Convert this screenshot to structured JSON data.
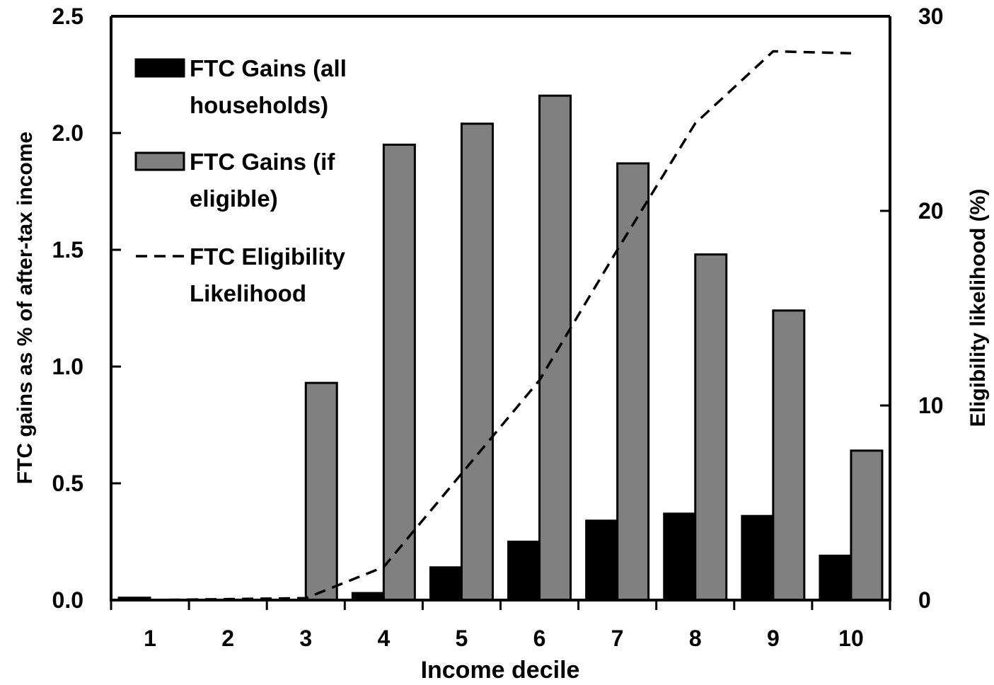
{
  "chart_data": {
    "type": "bar",
    "categories": [
      "1",
      "2",
      "3",
      "4",
      "5",
      "6",
      "7",
      "8",
      "9",
      "10"
    ],
    "series": [
      {
        "name": "FTC Gains (all households)",
        "kind": "bar",
        "axis": "left",
        "color": "#000000",
        "values": [
          0.01,
          0.0,
          0.0,
          0.03,
          0.14,
          0.25,
          0.34,
          0.37,
          0.36,
          0.19
        ]
      },
      {
        "name": "FTC Gains (if eligible)",
        "kind": "bar",
        "axis": "left",
        "color": "#808080",
        "values": [
          0.0,
          0.0,
          0.93,
          1.95,
          2.04,
          2.16,
          1.87,
          1.48,
          1.24,
          0.64
        ]
      },
      {
        "name": "FTC Eligibility Likelihood",
        "kind": "line",
        "style": "dashed",
        "axis": "right",
        "color": "#000000",
        "values": [
          0.0,
          0.05,
          0.1,
          1.7,
          6.5,
          11.3,
          18.0,
          24.5,
          28.2,
          28.1
        ]
      }
    ],
    "legend_lines": [
      [
        "FTC Gains (all",
        "households)"
      ],
      [
        "FTC Gains (if",
        "eligible)"
      ],
      [
        "FTC Eligibility",
        "Likelihood"
      ]
    ],
    "legend_position": "top-left",
    "xlabel": "Income decile",
    "ylabel": "FTC gains as % of after-tax income",
    "y2label": "Eligibility likelihood (%)",
    "ylim": [
      0,
      2.5
    ],
    "y2lim": [
      0,
      30
    ],
    "yticks": [
      "0.0",
      "0.5",
      "1.0",
      "1.5",
      "2.0",
      "2.5"
    ],
    "y2ticks": [
      "0",
      "10",
      "20",
      "30"
    ],
    "grid": false
  }
}
